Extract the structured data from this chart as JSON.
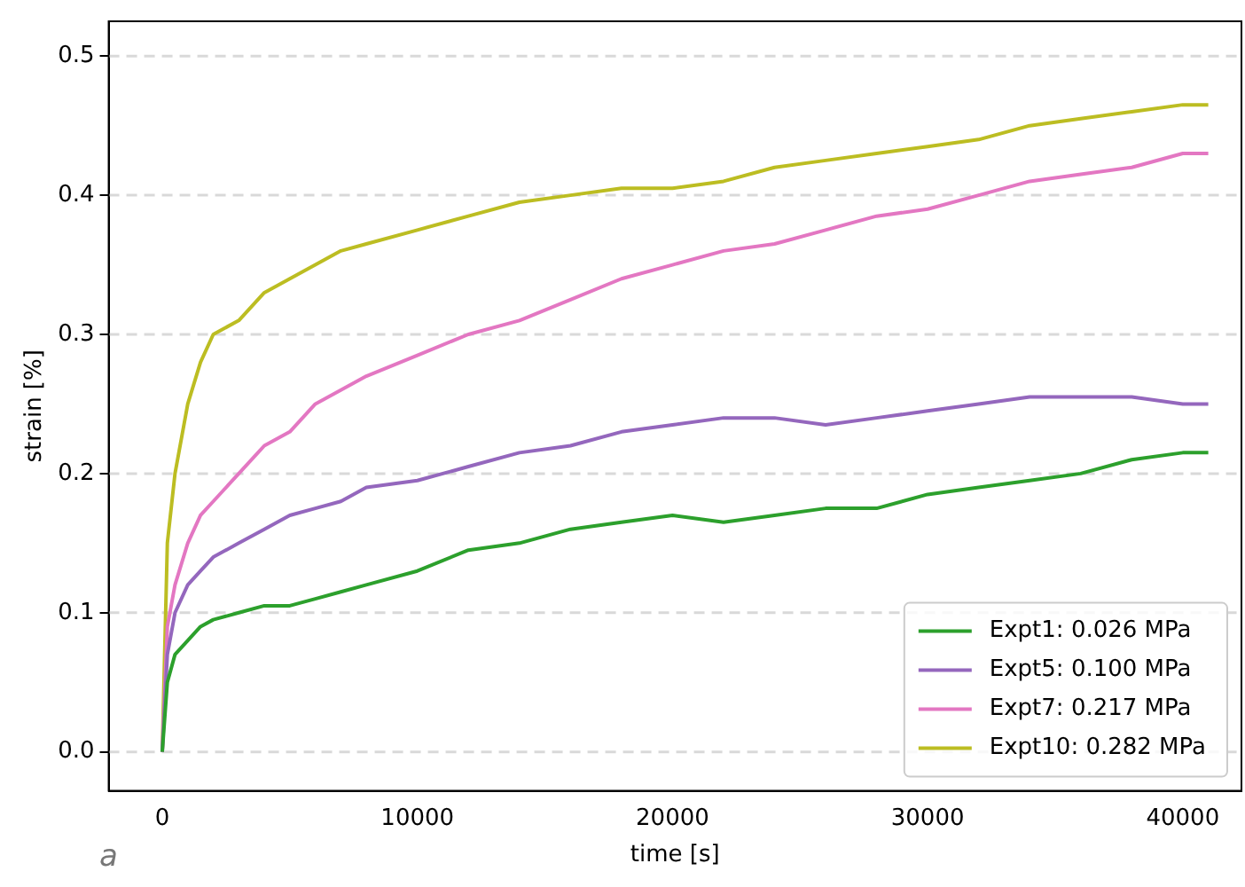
{
  "chart_data": {
    "type": "line",
    "xlabel": "time [s]",
    "ylabel": "strain [%]",
    "annotations": [
      "a"
    ],
    "x": [
      0,
      200,
      500,
      1000,
      1500,
      2000,
      3000,
      4000,
      5000,
      6000,
      7000,
      8000,
      10000,
      12000,
      14000,
      16000,
      18000,
      20000,
      22000,
      24000,
      26000,
      28000,
      30000,
      32000,
      34000,
      36000,
      38000,
      40000,
      41000
    ],
    "series": [
      {
        "name": "Expt1: 0.026 MPa",
        "color": "#2ca02c",
        "values": [
          0,
          0.05,
          0.07,
          0.08,
          0.09,
          0.095,
          0.1,
          0.105,
          0.105,
          0.11,
          0.115,
          0.12,
          0.13,
          0.145,
          0.15,
          0.16,
          0.165,
          0.17,
          0.165,
          0.17,
          0.175,
          0.175,
          0.185,
          0.19,
          0.195,
          0.2,
          0.21,
          0.215,
          0.215
        ]
      },
      {
        "name": "Expt5: 0.100 MPa",
        "color": "#9467bd",
        "values": [
          0,
          0.07,
          0.1,
          0.12,
          0.13,
          0.14,
          0.15,
          0.16,
          0.17,
          0.175,
          0.18,
          0.19,
          0.195,
          0.205,
          0.215,
          0.22,
          0.23,
          0.235,
          0.24,
          0.24,
          0.235,
          0.24,
          0.245,
          0.25,
          0.255,
          0.255,
          0.255,
          0.25,
          0.25
        ]
      },
      {
        "name": "Expt7: 0.217 MPa",
        "color": "#e377c2",
        "values": [
          0,
          0.09,
          0.12,
          0.15,
          0.17,
          0.18,
          0.2,
          0.22,
          0.23,
          0.25,
          0.26,
          0.27,
          0.285,
          0.3,
          0.31,
          0.325,
          0.34,
          0.35,
          0.36,
          0.365,
          0.375,
          0.385,
          0.39,
          0.4,
          0.41,
          0.415,
          0.42,
          0.43,
          0.43
        ]
      },
      {
        "name": "Expt10: 0.282 MPa",
        "color": "#bcbd22",
        "values": [
          0,
          0.15,
          0.2,
          0.25,
          0.28,
          0.3,
          0.31,
          0.33,
          0.34,
          0.35,
          0.36,
          0.365,
          0.375,
          0.385,
          0.395,
          0.4,
          0.405,
          0.405,
          0.41,
          0.42,
          0.425,
          0.43,
          0.435,
          0.44,
          0.45,
          0.455,
          0.46,
          0.465,
          0.465
        ]
      }
    ],
    "xlim": [
      -2100,
      42300
    ],
    "xticks": [
      0,
      10000,
      20000,
      30000,
      40000
    ],
    "ylim": [
      -0.028,
      0.525
    ],
    "yticks": [
      {
        "value": 0,
        "label": "0.0"
      },
      0.1,
      0.2,
      0.3,
      0.4,
      0.5
    ],
    "grid": "y",
    "legend": "bottom right",
    "line_style": "solid",
    "marker": "none"
  }
}
